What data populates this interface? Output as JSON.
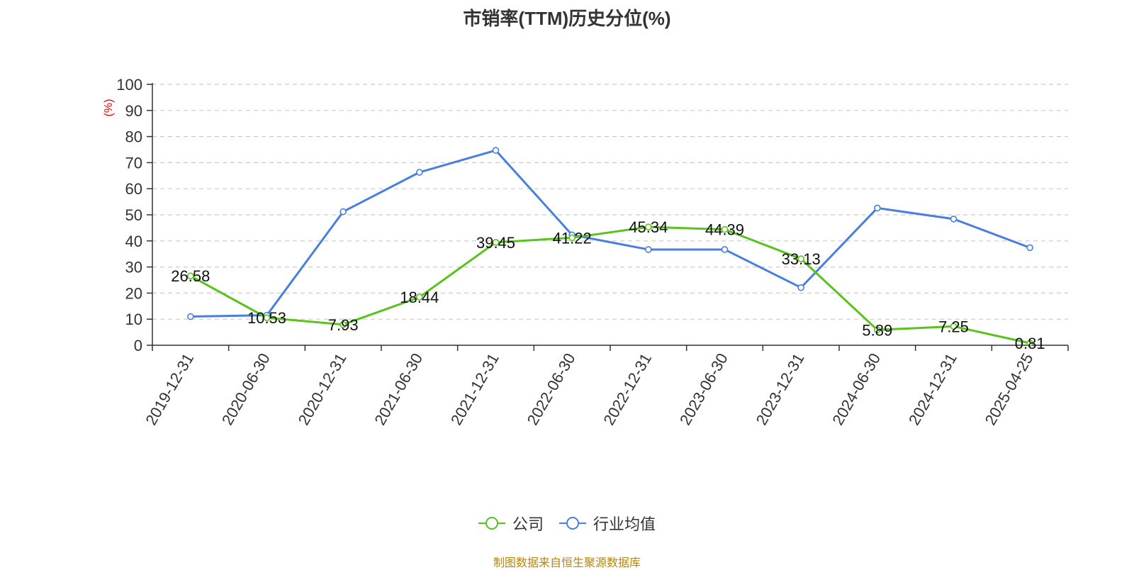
{
  "chart_data": {
    "type": "line",
    "title": "市销率(TTM)历史分位(%)",
    "ylabel": "(%)",
    "xlabel": "",
    "ylim": [
      0,
      100
    ],
    "yticks": [
      0,
      10,
      20,
      30,
      40,
      50,
      60,
      70,
      80,
      90,
      100
    ],
    "grid": true,
    "legend_position": "bottom",
    "categories": [
      "2019-12-31",
      "2020-06-30",
      "2020-12-31",
      "2021-06-30",
      "2021-12-31",
      "2022-06-30",
      "2022-12-31",
      "2023-06-30",
      "2023-12-31",
      "2024-06-30",
      "2024-12-31",
      "2025-04-25"
    ],
    "series": [
      {
        "name": "公司",
        "color": "#5ac21d",
        "data_labels": true,
        "values": [
          26.58,
          10.53,
          7.93,
          18.44,
          39.45,
          41.22,
          45.34,
          44.39,
          33.13,
          5.89,
          7.25,
          0.81
        ]
      },
      {
        "name": "行业均值",
        "color": "#4a7fdd",
        "data_labels": false,
        "values": [
          11.0,
          11.5,
          51.2,
          66.3,
          74.7,
          42.3,
          36.7,
          36.7,
          22.1,
          52.6,
          48.4,
          37.4
        ]
      }
    ]
  },
  "footer": {
    "source": "制图数据来自恒生聚源数据库"
  },
  "colors": {
    "axis": "#333333",
    "grid": "#cccccc",
    "ylabel": "#ff0000",
    "source": "#b8860b"
  }
}
